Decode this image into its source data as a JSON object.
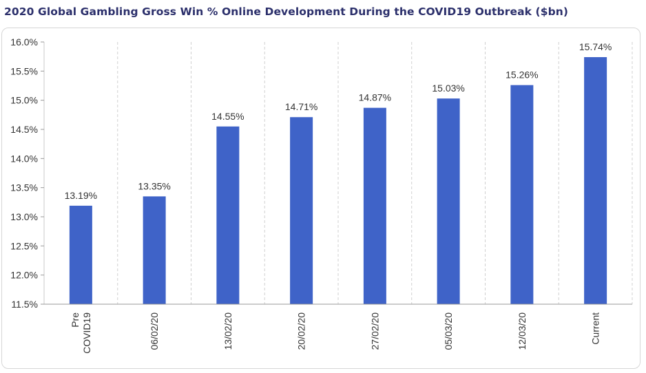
{
  "chart_data": {
    "type": "bar",
    "title": "2020 Global Gambling Gross Win % Online Development During the COVID19 Outbreak ($bn)",
    "categories": [
      [
        "Pre",
        "COVID19"
      ],
      [
        "06/02/20"
      ],
      [
        "13/02/20"
      ],
      [
        "20/02/20"
      ],
      [
        "27/02/20"
      ],
      [
        "05/03/20"
      ],
      [
        "12/03/20"
      ],
      [
        "Current"
      ]
    ],
    "values": [
      13.19,
      13.35,
      14.55,
      14.71,
      14.87,
      15.03,
      15.26,
      15.74
    ],
    "value_labels": [
      "13.19%",
      "13.35%",
      "14.55%",
      "14.71%",
      "14.87%",
      "15.03%",
      "15.26%",
      "15.74%"
    ],
    "yticks": [
      11.5,
      12.0,
      12.5,
      13.0,
      13.5,
      14.0,
      14.5,
      15.0,
      15.5,
      16.0
    ],
    "ytick_labels": [
      "11.5%",
      "12.0%",
      "12.5%",
      "13.0%",
      "13.5%",
      "14.0%",
      "14.5%",
      "15.0%",
      "15.5%",
      "16.0%"
    ],
    "ylim": [
      11.5,
      16.0
    ],
    "grid": "vertical-dashed",
    "legend": "none",
    "bar_color": "#3f63c8"
  }
}
